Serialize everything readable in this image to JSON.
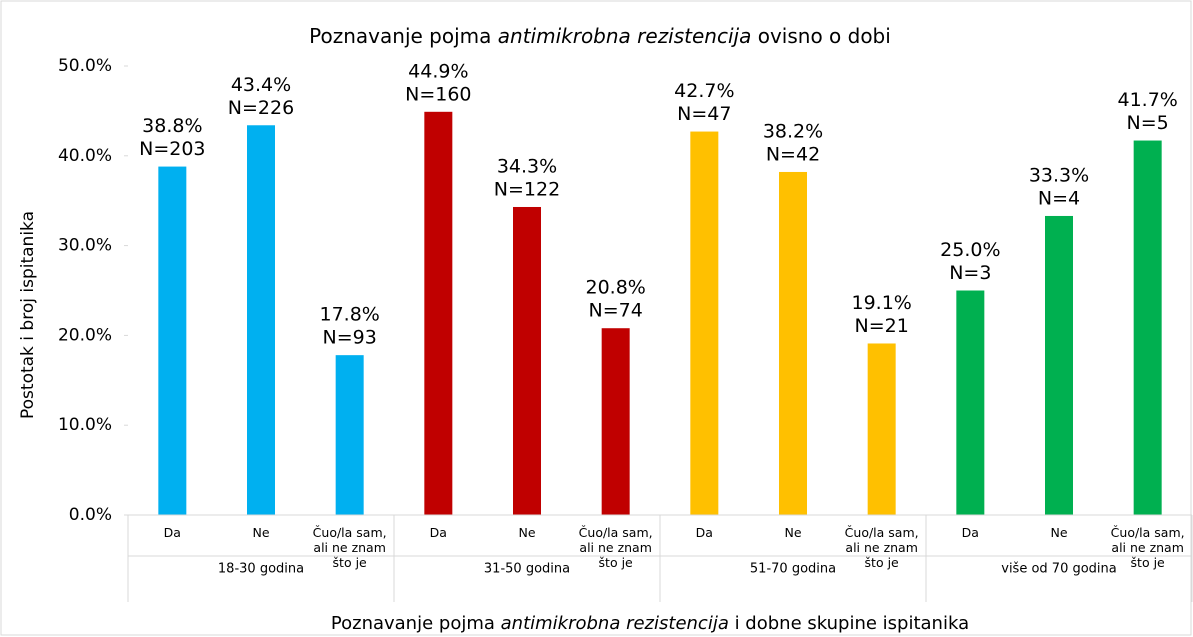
{
  "chart_data": {
    "type": "bar",
    "title": [
      "Poznavanje pojma ",
      "antimikrobna rezistencija",
      " ovisno o dobi"
    ],
    "x_label": [
      "Poznavanje pojma ",
      "antimikrobna rezistencija",
      " i dobne skupine ispitanika"
    ],
    "y_label": "Postotak i broj ispitanika",
    "ylim": [
      0,
      50
    ],
    "yticks": [
      {
        "value": 0,
        "label": "0.0%"
      },
      {
        "value": 10,
        "label": "10.0%"
      },
      {
        "value": 20,
        "label": "20.0%"
      },
      {
        "value": 30,
        "label": "30.0%"
      },
      {
        "value": 40,
        "label": "40.0%"
      },
      {
        "value": 50,
        "label": "50.0%"
      }
    ],
    "grid": false,
    "groups": [
      {
        "name": "18-30 godina",
        "color": "#00b0f0",
        "categories": [
          "Da",
          "Ne",
          "Čuo/la sam, ali ne znam što je"
        ],
        "values": [
          38.8,
          43.4,
          17.8
        ],
        "value_labels": [
          "38.8%",
          "43.4%",
          "17.8%"
        ],
        "n": [
          203,
          226,
          93
        ],
        "n_labels": [
          "N=203",
          "N=226",
          "N=93"
        ]
      },
      {
        "name": "31-50 godina",
        "color": "#c00000",
        "categories": [
          "Da",
          "Ne",
          "Čuo/la sam, ali ne znam što je"
        ],
        "values": [
          44.9,
          34.3,
          20.8
        ],
        "value_labels": [
          "44.9%",
          "34.3%",
          "20.8%"
        ],
        "n": [
          160,
          122,
          74
        ],
        "n_labels": [
          "N=160",
          "N=122",
          "N=74"
        ]
      },
      {
        "name": "51-70 godina",
        "color": "#ffc000",
        "categories": [
          "Da",
          "Ne",
          "Čuo/la sam, ali ne znam što je"
        ],
        "values": [
          42.7,
          38.2,
          19.1
        ],
        "value_labels": [
          "42.7%",
          "38.2%",
          "19.1%"
        ],
        "n": [
          47,
          42,
          21
        ],
        "n_labels": [
          "N=47",
          "N=42",
          "N=21"
        ]
      },
      {
        "name": "više od 70 godina",
        "color": "#00b050",
        "categories": [
          "Da",
          "Ne",
          "Čuo/la sam, ali ne znam što je"
        ],
        "values": [
          25.0,
          33.3,
          41.7
        ],
        "value_labels": [
          "25.0%",
          "33.3%",
          "41.7%"
        ],
        "n": [
          3,
          4,
          5
        ],
        "n_labels": [
          "N=3",
          "N=4",
          "N=5"
        ]
      }
    ]
  }
}
